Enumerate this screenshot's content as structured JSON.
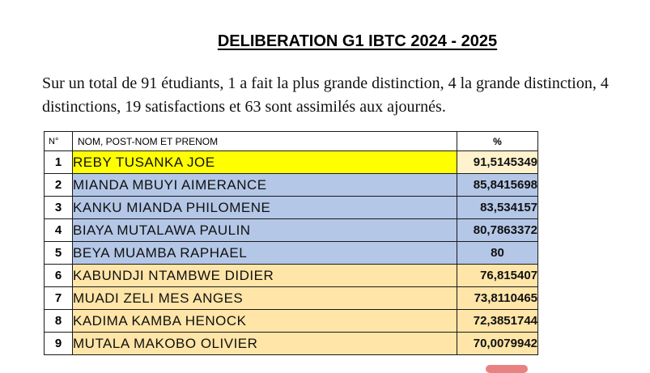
{
  "title": "DELIBERATION G1 IBTC 2024 - 2025",
  "summary": "Sur un total de 91 étudiants, 1 a fait la plus grande distinction, 4 la grande distinction, 4 distinctions, 19 satisfactions et 63 sont assimilés aux ajournés.",
  "table": {
    "headers": {
      "num": "N°",
      "name": "NOM, POST-NOM ET PRENOM",
      "pct": "%"
    },
    "rows": [
      {
        "num": "1",
        "name": "REBY TUSANKA JOE",
        "pct": "91,5145349",
        "name_bg": "#ffff00",
        "pct_bg": "#fff2cc"
      },
      {
        "num": "2",
        "name": "MIANDA MBUYI AIMERANCE",
        "pct": "85,8415698",
        "name_bg": "#b4c7e7",
        "pct_bg": "#b4c7e7"
      },
      {
        "num": "3",
        "name": "KANKU MIANDA PHILOMENE",
        "pct": "83,534157",
        "name_bg": "#b4c7e7",
        "pct_bg": "#b4c7e7"
      },
      {
        "num": "4",
        "name": "BIAYA MUTALAWA PAULIN",
        "pct": "80,7863372",
        "name_bg": "#b4c7e7",
        "pct_bg": "#b4c7e7"
      },
      {
        "num": "5",
        "name": "BEYA MUAMBA RAPHAEL",
        "pct": "80",
        "name_bg": "#b4c7e7",
        "pct_bg": "#b4c7e7",
        "pct_center": true
      },
      {
        "num": "6",
        "name": "KABUNDJI NTAMBWE DIDIER",
        "pct": "76,815407",
        "name_bg": "#ffe5a8",
        "pct_bg": "#ffe5a8"
      },
      {
        "num": "7",
        "name": "MUADI ZELI MES ANGES",
        "pct": "73,8110465",
        "name_bg": "#ffe5a8",
        "pct_bg": "#ffe5a8"
      },
      {
        "num": "8",
        "name": "KADIMA KAMBA HENOCK",
        "pct": "72,3851744",
        "name_bg": "#ffe5a8",
        "pct_bg": "#ffe5a8"
      },
      {
        "num": "9",
        "name": "MUTALA MAKOBO OLIVIER",
        "pct": "70,0079942",
        "name_bg": "#ffe5a8",
        "pct_bg": "#ffe5a8"
      }
    ]
  }
}
